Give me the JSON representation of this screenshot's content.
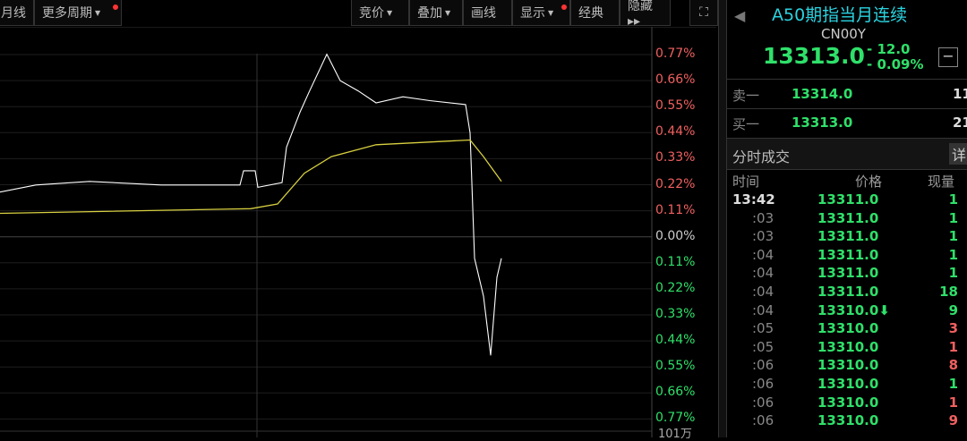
{
  "toolbar": {
    "left": [
      {
        "label": "月线"
      },
      {
        "label": "更多周期",
        "dropdown": true,
        "dot": true
      }
    ],
    "right": [
      {
        "label": "竞价",
        "dropdown": true
      },
      {
        "label": "叠加",
        "dropdown": true
      },
      {
        "label": "画线"
      },
      {
        "label": "显示",
        "dropdown": true,
        "dot": true
      },
      {
        "label": "经典"
      },
      {
        "label": "隐藏 ▸▸"
      }
    ],
    "fullscreen_icon": "expand-icon"
  },
  "chart_data": {
    "type": "line",
    "y_axis_labels": [
      "0.77%",
      "0.66%",
      "0.55%",
      "0.44%",
      "0.33%",
      "0.22%",
      "0.11%",
      "0.00%",
      "0.11%",
      "0.22%",
      "0.33%",
      "0.44%",
      "0.55%",
      "0.66%",
      "0.77%"
    ],
    "ylim": [
      -0.77,
      0.77
    ],
    "volume_label": "101万",
    "series": [
      {
        "color": "#ffffff",
        "x": [
          0,
          40,
          100,
          180,
          268,
          272,
          285,
          288,
          315,
          320,
          335,
          345,
          365,
          380,
          400,
          420,
          450,
          480,
          520,
          525,
          530,
          540,
          548,
          555,
          560
        ],
        "values": [
          0.19,
          0.22,
          0.235,
          0.22,
          0.22,
          0.28,
          0.28,
          0.21,
          0.23,
          0.38,
          0.51,
          0.63,
          0.75,
          0.64,
          0.64,
          0.55,
          0.57,
          0.56,
          0.56,
          0.44,
          -0.09,
          -0.25,
          -0.5,
          -0.17,
          -0.09
        ]
      },
      {
        "color": "#d8d040",
        "x": [
          0,
          280,
          310,
          340,
          370,
          420,
          525,
          540,
          560
        ],
        "values": [
          0.1,
          0.12,
          0.14,
          0.27,
          0.34,
          0.39,
          0.41,
          0.34,
          0.235
        ]
      }
    ]
  },
  "side": {
    "title": "A50期指当月连续",
    "code": "CN00Y",
    "price": "13313.0",
    "change": "- 12.0",
    "change_pct": "- 0.09%",
    "sell_label": "卖一",
    "sell_price": "13314.0",
    "sell_vol": "11",
    "buy_label": "买一",
    "buy_price": "13313.0",
    "buy_vol": "21",
    "ticks_title": "分时成交",
    "detail_btn": "详",
    "headers": {
      "time": "时间",
      "price": "价格",
      "vol": "现量"
    },
    "trades": [
      {
        "t": "13:42",
        "p": "13311.0",
        "v": "1",
        "vc": "g"
      },
      {
        "t": ":03",
        "p": "13311.0",
        "v": "1",
        "vc": "g"
      },
      {
        "t": ":03",
        "p": "13311.0",
        "v": "1",
        "vc": "g"
      },
      {
        "t": ":04",
        "p": "13311.0",
        "v": "1",
        "vc": "g"
      },
      {
        "t": ":04",
        "p": "13311.0",
        "v": "1",
        "vc": "g"
      },
      {
        "t": ":04",
        "p": "13311.0",
        "v": "18",
        "vc": "g"
      },
      {
        "t": ":04",
        "p": "13310.0⬇",
        "v": "9",
        "vc": "g"
      },
      {
        "t": ":05",
        "p": "13310.0",
        "v": "3",
        "vc": "r"
      },
      {
        "t": ":05",
        "p": "13310.0",
        "v": "1",
        "vc": "r"
      },
      {
        "t": ":06",
        "p": "13310.0",
        "v": "8",
        "vc": "r"
      },
      {
        "t": ":06",
        "p": "13310.0",
        "v": "1",
        "vc": "g"
      },
      {
        "t": ":06",
        "p": "13310.0",
        "v": "1",
        "vc": "r"
      },
      {
        "t": ":06",
        "p": "13310.0",
        "v": "9",
        "vc": "r"
      }
    ]
  }
}
